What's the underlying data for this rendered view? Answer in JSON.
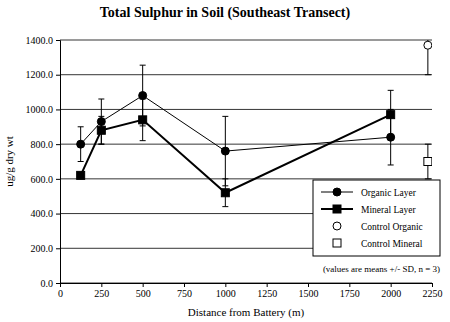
{
  "chart_data": {
    "type": "line",
    "title": "Total Sulphur in Soil (Southeast Transect)",
    "x_label": "Distance from Battery (m)",
    "y_label": "ug/g dry wt",
    "annotation": "(values are means +/- SD, n = 3)",
    "xlim": [
      0,
      2250
    ],
    "xticks": [
      0,
      250,
      500,
      750,
      1000,
      1250,
      1500,
      1750,
      2000,
      2250
    ],
    "ylim": [
      0,
      1400
    ],
    "yticks": [
      {
        "value": 0,
        "label": "0.0"
      },
      {
        "value": 200,
        "label": "200.0"
      },
      {
        "value": 400,
        "label": "400.0"
      },
      {
        "value": 600,
        "label": "600.0"
      },
      {
        "value": 800,
        "label": "800.0"
      },
      {
        "value": 1000,
        "label": "1000.0"
      },
      {
        "value": 1200,
        "label": "1200.0"
      },
      {
        "value": 1400,
        "label": "1400.0"
      }
    ],
    "grid": true,
    "legend": "right",
    "series": [
      {
        "name": "Organic Layer",
        "color": "#000000",
        "marker": "circle",
        "line_style": "solid",
        "x": [
          125,
          250,
          500,
          1000,
          2000
        ],
        "values": [
          800,
          930,
          1080,
          760,
          840
        ],
        "errors": [
          100,
          130,
          175,
          200,
          160
        ]
      },
      {
        "name": "Mineral Layer",
        "color": "#000000",
        "marker": "square",
        "line_style": "solid",
        "x": [
          125,
          250,
          500,
          1000,
          2000
        ],
        "values": [
          620,
          880,
          940,
          520,
          970
        ],
        "errors": [
          0,
          80,
          120,
          80,
          140
        ]
      },
      {
        "name": "Control Organic",
        "color": "#000000",
        "marker": "open-circle",
        "line_style": "none",
        "x": [
          2225
        ],
        "values": [
          1370
        ],
        "errors": [
          170
        ]
      },
      {
        "name": "Control Mineral",
        "color": "#000000",
        "marker": "open-square",
        "line_style": "none",
        "x": [
          2225
        ],
        "values": [
          700
        ],
        "errors": [
          100
        ]
      }
    ]
  }
}
